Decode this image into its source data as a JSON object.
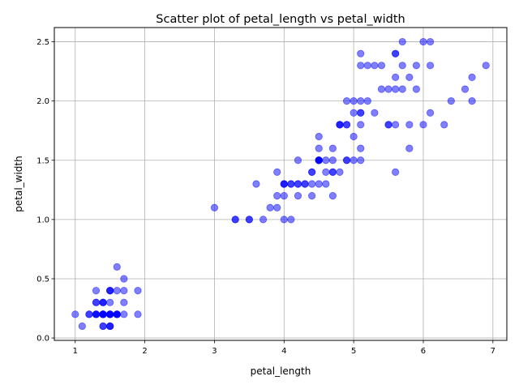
{
  "chart_data": {
    "type": "scatter",
    "title": "Scatter plot of petal_length vs petal_width",
    "xlabel": "petal_length",
    "ylabel": "petal_width",
    "xlim": [
      0.7,
      7.2
    ],
    "ylim": [
      -0.02,
      2.62
    ],
    "xticks": [
      1,
      2,
      3,
      4,
      5,
      6,
      7
    ],
    "yticks": [
      0.0,
      0.5,
      1.0,
      1.5,
      2.0,
      2.5
    ],
    "xtick_labels": [
      "1",
      "2",
      "3",
      "4",
      "5",
      "6",
      "7"
    ],
    "ytick_labels": [
      "0.0",
      "0.5",
      "1.0",
      "1.5",
      "2.0",
      "2.5"
    ],
    "grid": true,
    "marker_color": "#0000ff",
    "marker_alpha": 0.5,
    "x": [
      1.4,
      1.4,
      1.3,
      1.5,
      1.4,
      1.7,
      1.4,
      1.5,
      1.4,
      1.5,
      1.5,
      1.6,
      1.4,
      1.1,
      1.2,
      1.5,
      1.3,
      1.4,
      1.7,
      1.5,
      1.7,
      1.5,
      1.0,
      1.7,
      1.9,
      1.6,
      1.6,
      1.5,
      1.4,
      1.6,
      1.6,
      1.5,
      1.5,
      1.4,
      1.5,
      1.2,
      1.3,
      1.4,
      1.3,
      1.5,
      1.3,
      1.3,
      1.3,
      1.6,
      1.9,
      1.4,
      1.6,
      1.4,
      1.5,
      1.4,
      4.7,
      4.5,
      4.9,
      4.0,
      4.6,
      4.5,
      4.7,
      3.3,
      4.6,
      3.9,
      3.5,
      4.2,
      4.0,
      4.7,
      3.6,
      4.4,
      4.5,
      4.1,
      4.5,
      3.9,
      4.8,
      4.0,
      4.9,
      4.7,
      4.3,
      4.4,
      4.8,
      5.0,
      4.5,
      3.5,
      3.8,
      3.7,
      3.9,
      5.1,
      4.5,
      4.5,
      4.7,
      4.4,
      4.1,
      4.0,
      4.4,
      4.6,
      4.0,
      3.3,
      4.2,
      4.2,
      4.2,
      4.3,
      3.0,
      4.1,
      6.0,
      5.1,
      5.9,
      5.6,
      5.8,
      6.6,
      4.5,
      6.3,
      5.8,
      6.1,
      5.1,
      5.3,
      5.5,
      5.0,
      5.1,
      5.3,
      5.5,
      6.7,
      6.9,
      5.0,
      5.7,
      4.9,
      6.7,
      4.9,
      5.7,
      6.0,
      4.8,
      4.9,
      5.6,
      5.8,
      6.1,
      6.4,
      5.6,
      5.1,
      5.6,
      6.1,
      5.6,
      5.5,
      4.8,
      5.4,
      5.6,
      5.1,
      5.1,
      5.9,
      5.7,
      5.2,
      5.0,
      5.2,
      5.4,
      5.1
    ],
    "y": [
      0.2,
      0.2,
      0.2,
      0.2,
      0.2,
      0.4,
      0.3,
      0.2,
      0.2,
      0.1,
      0.2,
      0.2,
      0.1,
      0.1,
      0.2,
      0.4,
      0.4,
      0.3,
      0.3,
      0.3,
      0.2,
      0.4,
      0.2,
      0.5,
      0.2,
      0.2,
      0.4,
      0.2,
      0.2,
      0.2,
      0.2,
      0.4,
      0.1,
      0.2,
      0.1,
      0.2,
      0.2,
      0.1,
      0.2,
      0.2,
      0.3,
      0.3,
      0.2,
      0.6,
      0.4,
      0.3,
      0.2,
      0.2,
      0.2,
      0.2,
      1.4,
      1.5,
      1.5,
      1.3,
      1.5,
      1.3,
      1.6,
      1.0,
      1.3,
      1.4,
      1.0,
      1.5,
      1.0,
      1.4,
      1.3,
      1.4,
      1.5,
      1.0,
      1.5,
      1.1,
      1.8,
      1.3,
      1.5,
      1.2,
      1.3,
      1.4,
      1.4,
      1.7,
      1.5,
      1.0,
      1.1,
      1.0,
      1.2,
      1.6,
      1.5,
      1.6,
      1.5,
      1.3,
      1.3,
      1.3,
      1.2,
      1.4,
      1.2,
      1.0,
      1.3,
      1.2,
      1.3,
      1.3,
      1.1,
      1.3,
      2.5,
      1.9,
      2.1,
      1.8,
      2.2,
      2.1,
      1.7,
      1.8,
      1.8,
      2.5,
      2.0,
      1.9,
      2.1,
      2.0,
      2.4,
      2.3,
      1.8,
      2.2,
      2.3,
      1.5,
      2.3,
      2.0,
      2.0,
      1.8,
      2.1,
      1.8,
      1.8,
      1.8,
      2.1,
      1.6,
      1.9,
      2.0,
      2.2,
      1.5,
      1.4,
      2.3,
      2.4,
      1.8,
      1.8,
      2.1,
      2.4,
      2.3,
      1.9,
      2.3,
      2.5,
      2.3,
      1.9,
      2.0,
      2.3,
      1.8
    ]
  }
}
